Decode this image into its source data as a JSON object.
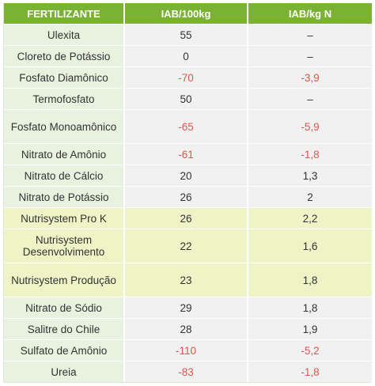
{
  "header": {
    "col1": "FERTILIZANTE",
    "col2": "IAB/100kg",
    "col3": "IAB/kg N"
  },
  "rows": [
    {
      "name": "Ulexita",
      "v1": "55",
      "v2": "–",
      "n1": false,
      "n2": false,
      "hl": false,
      "tall": false
    },
    {
      "name": "Cloreto de Potássio",
      "v1": "0",
      "v2": "–",
      "n1": false,
      "n2": false,
      "hl": false,
      "tall": false
    },
    {
      "name": "Fosfato Diamônico",
      "v1": "-70",
      "v2": "-3,9",
      "n1": true,
      "n2": true,
      "hl": false,
      "tall": false
    },
    {
      "name": "Termofosfato",
      "v1": "50",
      "v2": "–",
      "n1": false,
      "n2": false,
      "hl": false,
      "tall": false
    },
    {
      "name": "Fosfato Monoamônico",
      "v1": "-65",
      "v2": "-5,9",
      "n1": true,
      "n2": true,
      "hl": false,
      "tall": true
    },
    {
      "name": "Nitrato de Amônio",
      "v1": "-61",
      "v2": "-1,8",
      "n1": true,
      "n2": true,
      "hl": false,
      "tall": false
    },
    {
      "name": "Nitrato de Cálcio",
      "v1": "20",
      "v2": "1,3",
      "n1": false,
      "n2": false,
      "hl": false,
      "tall": false
    },
    {
      "name": "Nitrato de Potássio",
      "v1": "26",
      "v2": "2",
      "n1": false,
      "n2": false,
      "hl": false,
      "tall": false
    },
    {
      "name": "Nutrisystem Pro K",
      "v1": "26",
      "v2": "2,2",
      "n1": false,
      "n2": false,
      "hl": true,
      "tall": false
    },
    {
      "name": "Nutrisystem Desenvolvimento",
      "v1": "22",
      "v2": "1,6",
      "n1": false,
      "n2": false,
      "hl": true,
      "tall": true
    },
    {
      "name": "Nutrisystem Produção",
      "v1": "23",
      "v2": "1,8",
      "n1": false,
      "n2": false,
      "hl": true,
      "tall": true
    },
    {
      "name": "Nitrato de Sódio",
      "v1": "29",
      "v2": "1,8",
      "n1": false,
      "n2": false,
      "hl": false,
      "tall": false
    },
    {
      "name": "Salitre do Chile",
      "v1": "28",
      "v2": "1,9",
      "n1": false,
      "n2": false,
      "hl": false,
      "tall": false
    },
    {
      "name": "Sulfato de Amônio",
      "v1": "-110",
      "v2": "-5,2",
      "n1": true,
      "n2": true,
      "hl": false,
      "tall": false
    },
    {
      "name": "Ureia",
      "v1": "-83",
      "v2": "-1,8",
      "n1": true,
      "n2": true,
      "hl": false,
      "tall": false
    }
  ],
  "colors": {
    "header_bg": "#7ab233",
    "name_bg": "#e9f2df",
    "value_bg": "#f1f1f1",
    "highlight_bg": "#eff4c6",
    "negative": "#e2544a"
  }
}
